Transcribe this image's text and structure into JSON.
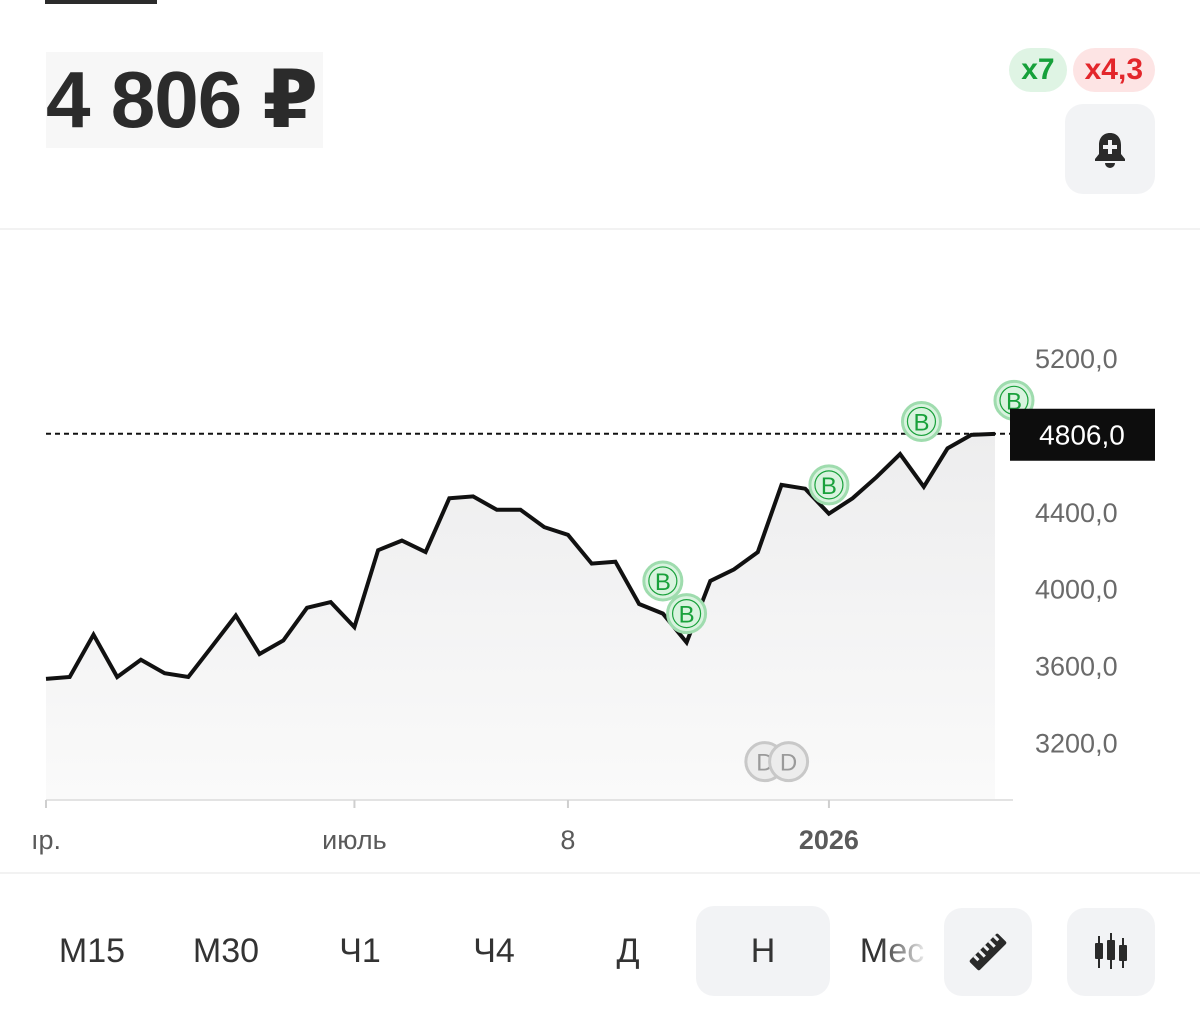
{
  "header": {
    "price": "4 806 ₽",
    "badge_green": "x7",
    "badge_red": "x4,3",
    "alert_icon": "bell-plus-icon"
  },
  "colors": {
    "line": "#111111",
    "marker_buy": "#19a13b",
    "marker_buy_fill": "#d9f3df",
    "marker_div": "#9a9a9a",
    "price_tag_bg": "#0d0d0d"
  },
  "chart_data": {
    "type": "line",
    "title": "",
    "xlabel": "",
    "ylabel": "",
    "ylim": [
      2900,
      5450
    ],
    "y_ticks": [
      3200,
      3600,
      4000,
      4400,
      5200
    ],
    "y_tick_labels": [
      "3200,0",
      "3600,0",
      "4000,0",
      "4400,0",
      "5200,0"
    ],
    "x_tick_labels": [
      "ıр.",
      "июль",
      "8",
      "2026"
    ],
    "x_tick_index": [
      0,
      13,
      22,
      33
    ],
    "current_price": 4806,
    "current_price_label": "4806,0",
    "values": [
      3530,
      3540,
      3760,
      3540,
      3630,
      3560,
      3540,
      3700,
      3860,
      3660,
      3730,
      3900,
      3930,
      3800,
      4200,
      4250,
      4190,
      4470,
      4480,
      4410,
      4410,
      4320,
      4280,
      4130,
      4140,
      3920,
      3870,
      3720,
      4040,
      4100,
      4190,
      4540,
      4520,
      4390,
      4470,
      4580,
      4700,
      4530,
      4730,
      4800,
      4805
    ],
    "markers": [
      {
        "label": "B",
        "kind": "buy",
        "index": 26,
        "value": 4040
      },
      {
        "label": "B",
        "kind": "buy",
        "index": 27,
        "value": 3870
      },
      {
        "label": "B",
        "kind": "buy",
        "index": 33,
        "value": 4540
      },
      {
        "label": "B",
        "kind": "buy",
        "index": 36.9,
        "value": 4870
      },
      {
        "label": "B",
        "kind": "buy",
        "index": 40.8,
        "value": 4980
      },
      {
        "label": "D",
        "kind": "div",
        "index": 30.3,
        "value": 3100
      },
      {
        "label": "D",
        "kind": "div",
        "index": 31.3,
        "value": 3100
      }
    ]
  },
  "timeframes": [
    "М15",
    "М30",
    "Ч1",
    "Ч4",
    "Д",
    "Н",
    "Мес"
  ],
  "active_timeframe": "Н",
  "tools": {
    "ruler": "ruler-icon",
    "candles": "candlestick-icon"
  }
}
